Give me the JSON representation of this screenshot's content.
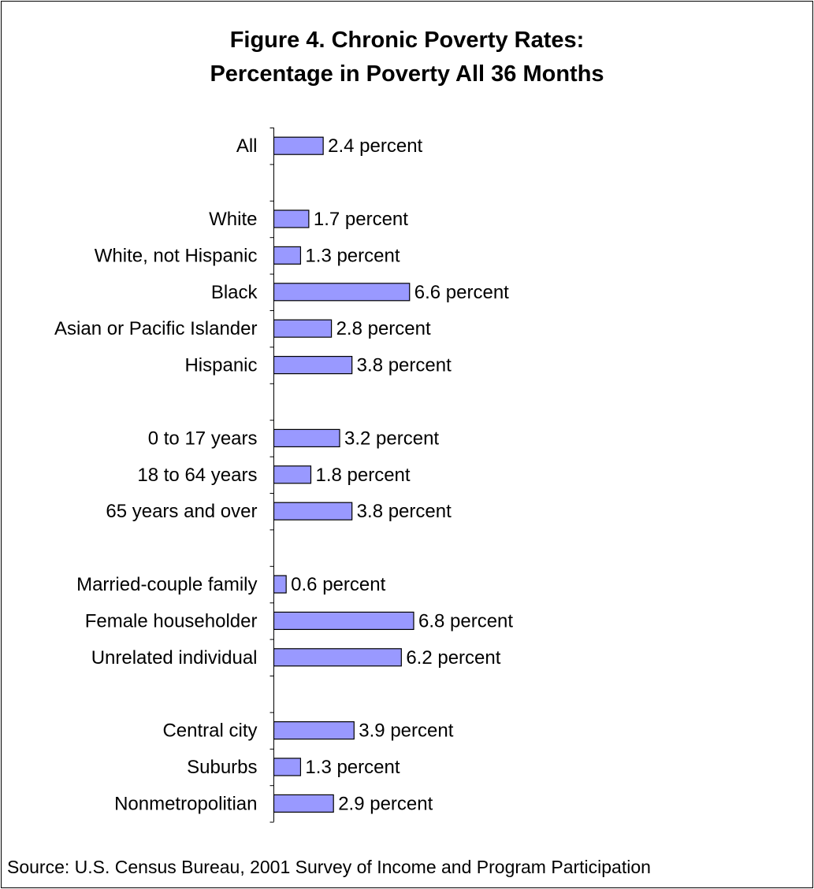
{
  "chart_data": {
    "type": "bar",
    "orientation": "horizontal",
    "title": "Figure 4. Chronic Poverty Rates:",
    "subtitle": "Percentage in Poverty All 36 Months",
    "value_suffix": " percent",
    "bar_color": "#9999ff",
    "grid": false,
    "legend": "none",
    "xlim": [
      0,
      7
    ],
    "rows": [
      {
        "label": "All",
        "value": 2.4,
        "value_label": "2.4 percent"
      },
      {
        "label": "",
        "value": null,
        "value_label": ""
      },
      {
        "label": "White",
        "value": 1.7,
        "value_label": "1.7 percent"
      },
      {
        "label": "White, not Hispanic",
        "value": 1.3,
        "value_label": "1.3 percent"
      },
      {
        "label": "Black",
        "value": 6.6,
        "value_label": "6.6 percent"
      },
      {
        "label": "Asian or Pacific Islander",
        "value": 2.8,
        "value_label": "2.8 percent"
      },
      {
        "label": "Hispanic",
        "value": 3.8,
        "value_label": "3.8 percent"
      },
      {
        "label": "",
        "value": null,
        "value_label": ""
      },
      {
        "label": "0 to 17 years",
        "value": 3.2,
        "value_label": "3.2 percent"
      },
      {
        "label": "18 to 64 years",
        "value": 1.8,
        "value_label": "1.8 percent"
      },
      {
        "label": "65 years and over",
        "value": 3.8,
        "value_label": "3.8 percent"
      },
      {
        "label": "",
        "value": null,
        "value_label": ""
      },
      {
        "label": "Married-couple family",
        "value": 0.6,
        "value_label": "0.6 percent"
      },
      {
        "label": "Female householder",
        "value": 6.8,
        "value_label": "6.8 percent"
      },
      {
        "label": "Unrelated individual",
        "value": 6.2,
        "value_label": "6.2 percent"
      },
      {
        "label": "",
        "value": null,
        "value_label": ""
      },
      {
        "label": "Central city",
        "value": 3.9,
        "value_label": "3.9 percent"
      },
      {
        "label": "Suburbs",
        "value": 1.3,
        "value_label": "1.3 percent"
      },
      {
        "label": "Nonmetropolitian",
        "value": 2.9,
        "value_label": "2.9 percent"
      }
    ]
  },
  "source": "Source: U.S. Census Bureau, 2001 Survey of Income and Program Participation"
}
